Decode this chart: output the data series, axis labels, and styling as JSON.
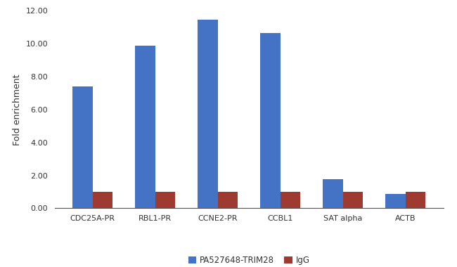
{
  "categories": [
    "CDC25A-PR",
    "RBL1-PR",
    "CCNE2-PR",
    "CCBL1",
    "SAT alpha",
    "ACTB"
  ],
  "trim28_values": [
    7.38,
    9.87,
    11.47,
    10.65,
    1.75,
    0.87
  ],
  "igg_values": [
    1.0,
    1.0,
    1.0,
    1.0,
    1.0,
    1.0
  ],
  "trim28_color": "#4472C4",
  "igg_color": "#9E3A2F",
  "ylabel": "Fold enrichment",
  "ylim": [
    0,
    12.0
  ],
  "yticks": [
    0.0,
    2.0,
    4.0,
    6.0,
    8.0,
    10.0,
    12.0
  ],
  "legend_labels": [
    "PA527648-TRIM28",
    "IgG"
  ],
  "bar_width": 0.32,
  "background_color": "#ffffff",
  "axes_bg_color": "#ffffff",
  "label_fontsize": 9,
  "tick_fontsize": 8,
  "legend_fontsize": 8.5
}
